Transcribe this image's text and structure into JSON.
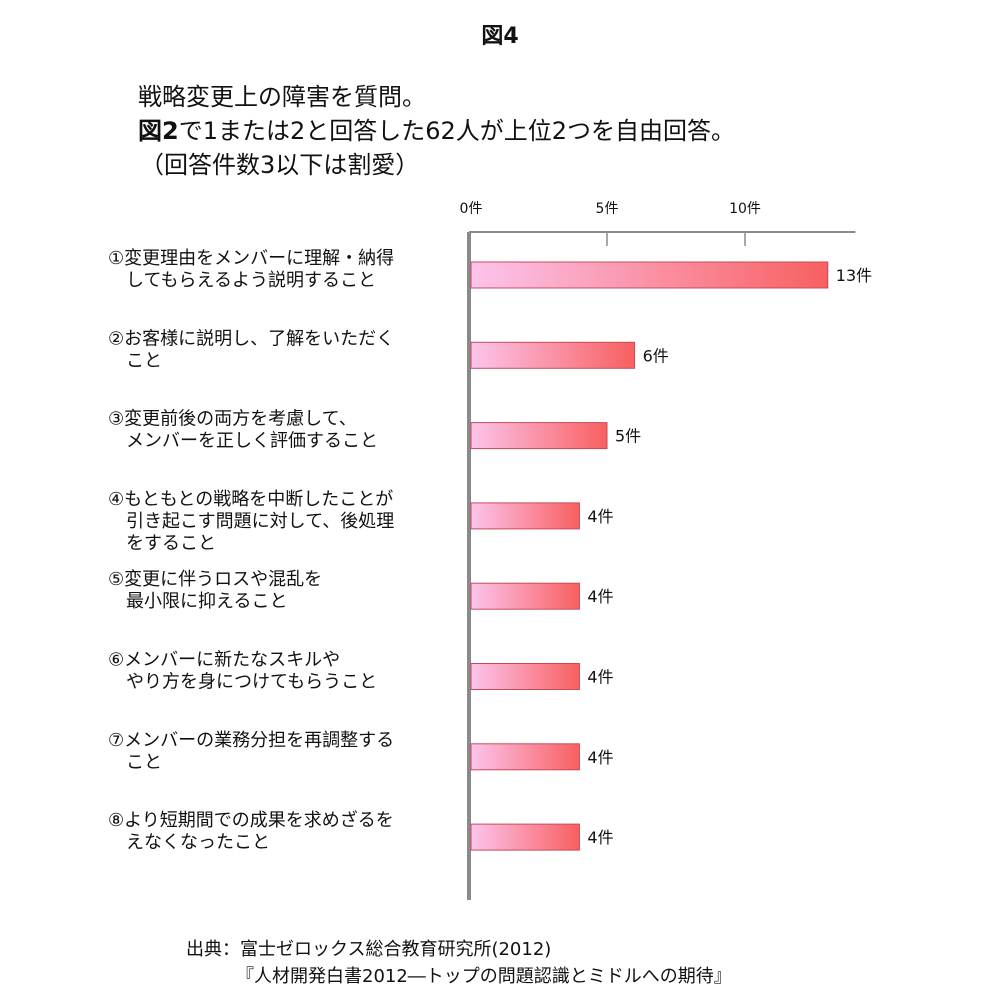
{
  "figure_label": "図4",
  "subtitle": {
    "line1": "戦略変更上の障害を質問。",
    "line2_lead": "図2",
    "line2_rest": "で1または2と回答した62人が上位2つを自由回答。",
    "line3": "（回答件数3以下は割愛）"
  },
  "source": {
    "line1": "出典：富士ゼロックス総合教育研究所(2012)",
    "line2": "『人材開発白書2012―トップの問題認識とミドルへの期待』"
  },
  "colors": {
    "bar_start": "#fcc4ec",
    "bar_end": "#f86060",
    "bar_border": "#c84a5a",
    "axis": "#8a8a8a"
  },
  "chart_data": {
    "type": "bar",
    "orientation": "horizontal",
    "categories": [
      [
        "①変更理由をメンバーに理解・納得",
        "　してもらえるよう説明すること"
      ],
      [
        "②お客様に説明し、了解をいただく",
        "　こと"
      ],
      [
        "③変更前後の両方を考慮して、",
        "　メンバーを正しく評価すること"
      ],
      [
        "④もともとの戦略を中断したことが",
        "　引き起こす問題に対して、後処理",
        "　をすること"
      ],
      [
        "⑤変更に伴うロスや混乱を",
        "　最小限に抑えること"
      ],
      [
        "⑥メンバーに新たなスキルや",
        "　やり方を身につけてもらうこと"
      ],
      [
        "⑦メンバーの業務分担を再調整する",
        "　こと"
      ],
      [
        "⑧より短期間での成果を求めざるを",
        "　えなくなったこと"
      ]
    ],
    "values": [
      13,
      6,
      5,
      4,
      4,
      4,
      4,
      4
    ],
    "value_labels": [
      "13件",
      "6件",
      "5件",
      "4件",
      "4件",
      "4件",
      "4件",
      "4件"
    ],
    "ticks": [
      0,
      5,
      10
    ],
    "tick_labels": [
      "0件",
      "5件",
      "10件"
    ],
    "xlim": [
      0,
      14
    ],
    "axis_position": "top",
    "legend": "none"
  }
}
